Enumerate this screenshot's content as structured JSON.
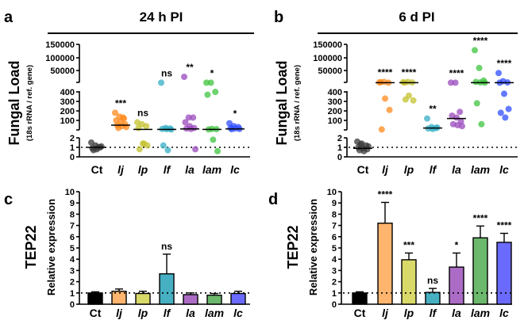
{
  "chart_data": [
    {
      "panel": "a",
      "type": "scatter",
      "title": "24 h PI",
      "ylabel": "Fungal Load",
      "ylabel2": "(18s rRNA / ref. gene)",
      "categories": [
        "Ct",
        "lj",
        "lp",
        "lf",
        "la",
        "lam",
        "lc"
      ],
      "yticks": [
        "150000",
        "100000",
        "50000",
        "400",
        "300",
        "200",
        "100",
        "2",
        "1",
        "0"
      ],
      "y_axis": "broken: 0-2, 2-400, 400-150000",
      "reference_line": 1,
      "colors": [
        "#3a3a3a",
        "#ff8a1c",
        "#c4c22e",
        "#36aec6",
        "#9a48bc",
        "#3ec43e",
        "#2f4cff"
      ],
      "points": [
        [
          1.5,
          1.2,
          1.0,
          0.9,
          0.8,
          1.1,
          0.7,
          1.0
        ],
        [
          180,
          140,
          120,
          100,
          80,
          60,
          50,
          40,
          30,
          20,
          130
        ],
        [
          80,
          60,
          40,
          20,
          1.4,
          1.2,
          0.8,
          1.4
        ],
        [
          2000,
          20,
          15,
          10,
          8,
          5,
          1.2,
          0.7
        ],
        [
          25000,
          130,
          130,
          80,
          40,
          20,
          15,
          10,
          0.8
        ],
        [
          2000,
          2000,
          400,
          370,
          10,
          8,
          5,
          1.8,
          0.6
        ],
        [
          70,
          40,
          30,
          20,
          15,
          10,
          8
        ]
      ],
      "medians": [
        1,
        50,
        5,
        5,
        10,
        5,
        10
      ],
      "significance": [
        "",
        "***",
        "ns",
        "ns",
        "**",
        "*",
        "*"
      ]
    },
    {
      "panel": "b",
      "type": "scatter",
      "title": "6 d PI",
      "ylabel": "Fungal Load",
      "ylabel2": "(18s rRNA / ref. gene)",
      "categories": [
        "Ct",
        "lj",
        "lp",
        "lf",
        "la",
        "lam",
        "lc"
      ],
      "yticks": [
        "150000",
        "100000",
        "50000",
        "400",
        "300",
        "200",
        "100",
        "2",
        "1",
        "0"
      ],
      "y_axis": "broken: 0-2, 2-400, 400-150000",
      "reference_line": 1,
      "colors": [
        "#3a3a3a",
        "#ff8a1c",
        "#c4c22e",
        "#36aec6",
        "#9a48bc",
        "#3ec43e",
        "#2f4cff"
      ],
      "points": [
        [
          1.6,
          1.4,
          1.2,
          1.0,
          0.9,
          0.8,
          0.7,
          0.6,
          1.1,
          1.3
        ],
        [
          3000,
          5000,
          2000,
          4000,
          330,
          210,
          5
        ],
        [
          4000,
          5000,
          3000,
          2000,
          360,
          310,
          320
        ],
        [
          120,
          30,
          20,
          15,
          10,
          25
        ],
        [
          2000,
          2000,
          190,
          150,
          130,
          90,
          60,
          50,
          40
        ],
        [
          130000,
          60000,
          10000,
          5000,
          3000,
          2000,
          280,
          60
        ],
        [
          40000,
          8000,
          3000,
          2000,
          380,
          220,
          180,
          130
        ]
      ],
      "medians": [
        0.9,
        2000,
        2000,
        20,
        120,
        2000,
        2000
      ],
      "significance": [
        "",
        "****",
        "****",
        "**",
        "****",
        "****",
        "****"
      ]
    },
    {
      "panel": "c",
      "type": "bar",
      "ylabel": "TEP22",
      "ylabel2": "Relative expression",
      "ylim": [
        0,
        10
      ],
      "yticks": [
        "0",
        "1",
        "2",
        "3",
        "4",
        "5",
        "6",
        "7",
        "8",
        "9",
        "10"
      ],
      "categories": [
        "Ct",
        "lj",
        "lp",
        "lf",
        "la",
        "lam",
        "lc"
      ],
      "values": [
        1.0,
        1.15,
        0.95,
        2.7,
        0.85,
        0.8,
        0.95
      ],
      "errors": [
        0.1,
        0.2,
        0.2,
        1.75,
        0.15,
        0.15,
        0.2
      ],
      "colors": [
        "#000000",
        "#ffb56e",
        "#d9d96a",
        "#46b0c2",
        "#ac6cc6",
        "#6cb86c",
        "#6a6aff"
      ],
      "significance": [
        "",
        "",
        "",
        "ns",
        "",
        "",
        ""
      ],
      "reference_line": 1
    },
    {
      "panel": "d",
      "type": "bar",
      "ylabel": "TEP22",
      "ylabel2": "Relative expression",
      "ylim": [
        0,
        10
      ],
      "yticks": [
        "0",
        "1",
        "2",
        "3",
        "4",
        "5",
        "6",
        "7",
        "8",
        "9",
        "10"
      ],
      "categories": [
        "Ct",
        "lj",
        "lp",
        "lf",
        "la",
        "lam",
        "lc"
      ],
      "values": [
        1.0,
        7.2,
        3.95,
        1.05,
        3.3,
        5.9,
        5.5
      ],
      "errors": [
        0.1,
        1.85,
        0.6,
        0.35,
        1.25,
        1.05,
        0.8
      ],
      "colors": [
        "#000000",
        "#ffb56e",
        "#d9d96a",
        "#46b0c2",
        "#ac6cc6",
        "#6cb86c",
        "#6a6aff"
      ],
      "significance": [
        "",
        "****",
        "***",
        "ns",
        "*",
        "****",
        "****"
      ],
      "reference_line": 1
    }
  ]
}
